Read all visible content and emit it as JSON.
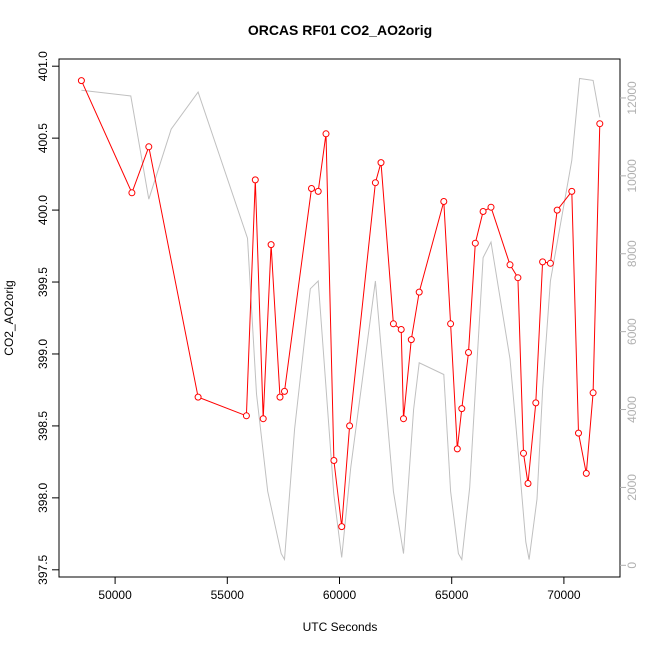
{
  "chart_data": {
    "type": "line",
    "title": "ORCAS RF01 CO2_AO2orig",
    "xlabel": "UTC Seconds",
    "ylabel": "CO2_AO2orig",
    "xlim": [
      47500,
      72500
    ],
    "ylim": [
      397.45,
      401.05
    ],
    "x_ticks": [
      50000,
      55000,
      60000,
      65000,
      70000
    ],
    "y_ticks": [
      397.5,
      398.0,
      398.5,
      399.0,
      399.5,
      400.0,
      400.5,
      401.0
    ],
    "y2_ticks": [
      0,
      2000,
      4000,
      6000,
      8000,
      10000,
      12000
    ],
    "y2_lim": [
      -300,
      13000
    ],
    "grid": false,
    "colors": {
      "primary": "#ff0000",
      "secondary": "#c0c0c0",
      "axis": "#000000",
      "secondary_axis": "#b0b0b0"
    },
    "series": [
      {
        "axis": "left",
        "marker": "circle",
        "x": [
          48500,
          50750,
          51500,
          53700,
          55850,
          56250,
          56600,
          56950,
          57350,
          57550,
          58750,
          59050,
          59400,
          59750,
          60100,
          60450,
          61600,
          61850,
          62400,
          62750,
          62850,
          63200,
          63550,
          64650,
          64950,
          65250,
          65450,
          65750,
          66050,
          66400,
          66750,
          67600,
          67950,
          68200,
          68400,
          68750,
          69050,
          69400,
          69700,
          70350,
          70650,
          71000,
          71300,
          71600
        ],
        "values": [
          400.9,
          400.12,
          400.44,
          398.7,
          398.57,
          400.21,
          398.55,
          399.76,
          398.7,
          398.74,
          400.15,
          400.13,
          400.53,
          398.26,
          397.8,
          398.5,
          400.19,
          400.33,
          399.21,
          399.17,
          398.55,
          399.1,
          399.43,
          400.06,
          399.21,
          398.34,
          398.62,
          399.01,
          399.77,
          399.99,
          400.02,
          399.62,
          399.53,
          398.31,
          398.1,
          398.66,
          399.64,
          399.63,
          400.0,
          400.13,
          398.45,
          398.17,
          398.73,
          400.6
        ]
      },
      {
        "axis": "right",
        "marker": "none",
        "x": [
          48500,
          50700,
          51500,
          52500,
          53700,
          55900,
          56300,
          56800,
          57400,
          57550,
          58000,
          58700,
          59050,
          59750,
          60100,
          60500,
          61600,
          62400,
          62850,
          63300,
          63550,
          64650,
          64950,
          65300,
          65450,
          65800,
          66400,
          66750,
          67600,
          67950,
          68300,
          68450,
          68800,
          69050,
          69400,
          70350,
          70700,
          71300,
          71600
        ],
        "values": [
          12200,
          12050,
          9400,
          11200,
          12150,
          8400,
          4400,
          1900,
          300,
          150,
          3500,
          7100,
          7300,
          1800,
          200,
          2500,
          7300,
          1900,
          300,
          4000,
          5200,
          4900,
          1900,
          300,
          150,
          2000,
          7900,
          8300,
          5300,
          3000,
          600,
          150,
          1700,
          4500,
          7300,
          10400,
          12500,
          12450,
          11500
        ]
      }
    ]
  }
}
